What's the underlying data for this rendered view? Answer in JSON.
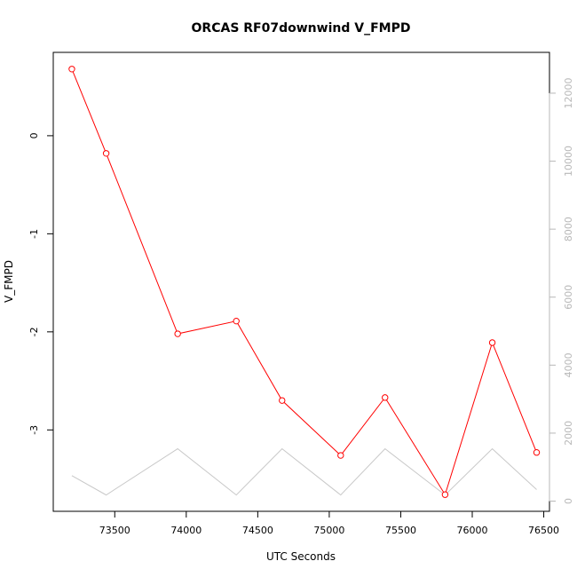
{
  "chart_data": {
    "type": "line",
    "title": "ORCAS RF07downwind V_FMPD",
    "xlabel": "UTC Seconds",
    "ylabel": "V_FMPD",
    "xlim": [
      73070,
      76540
    ],
    "ylim": [
      -3.83,
      0.85
    ],
    "y2lim": [
      -300,
      13200
    ],
    "x_ticks": [
      73500,
      74000,
      74500,
      75000,
      75500,
      76000,
      76500
    ],
    "x_tick_labels": [
      "73500",
      "74000",
      "74500",
      "75000",
      "75500",
      "76000",
      "76500"
    ],
    "y_ticks": [
      0,
      -1,
      -2,
      -3
    ],
    "y_tick_labels": [
      "0",
      "-1",
      "-2",
      "-3"
    ],
    "y2_ticks": [
      0,
      2000,
      4000,
      6000,
      8000,
      10000,
      12000
    ],
    "y2_tick_labels": [
      "0",
      "2000",
      "4000",
      "6000",
      "8000",
      "10000",
      "12000"
    ],
    "grid": false,
    "colors": {
      "primary": "#ff0000",
      "secondary": "#c8c8c8",
      "axis": "#000000",
      "right_axis": "#b8b8b8"
    },
    "series": [
      {
        "axis": "left",
        "marker": "open-circle",
        "x": [
          73200,
          73440,
          73940,
          74350,
          74670,
          75080,
          75390,
          75810,
          76140,
          76450
        ],
        "values": [
          0.68,
          -0.18,
          -2.02,
          -1.89,
          -2.7,
          -3.26,
          -2.67,
          -3.66,
          -2.11,
          -3.23
        ]
      },
      {
        "axis": "right",
        "marker": "none",
        "x": [
          73200,
          73440,
          73940,
          74350,
          74670,
          75080,
          75390,
          75810,
          76140,
          76450
        ],
        "values": [
          750,
          180,
          1540,
          180,
          1540,
          180,
          1540,
          180,
          1540,
          340
        ]
      }
    ]
  }
}
